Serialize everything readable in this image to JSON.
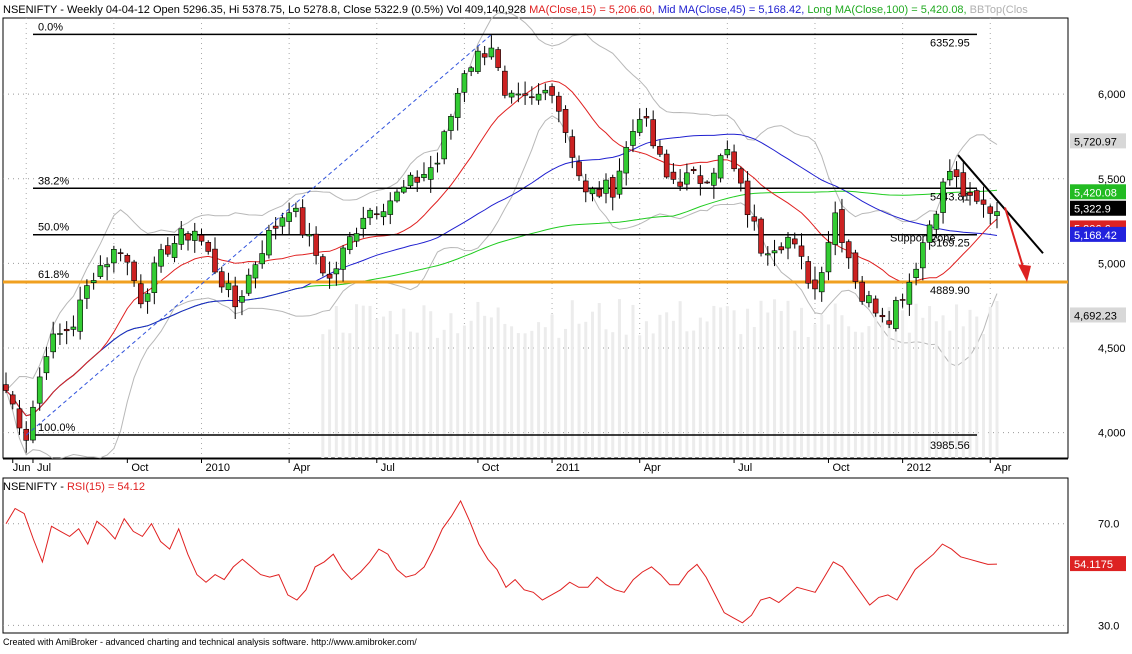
{
  "main_header": {
    "prefix": "NSENIFTY - Weekly 04-04-12 Open 5296.35, Hi 5378.75, Lo 5278.8, Close 5322.9 (0.5%) Vol 409,140,928 ",
    "ma15": "MA(Close,15) = 5,206.60, ",
    "ma45": "Mid MA(Close,45) = 5,168.42, ",
    "ma100": "Long MA(Close,100) = 5,420.08, ",
    "bb": "BBTop(Clos"
  },
  "rsi_header": {
    "prefix": "NSENIFTY - ",
    "rsi": "RSI(15) = 54.12"
  },
  "footer": "Created with AmiBroker - advanced charting and technical analysis software. http://www.amibroker.com/",
  "colors": {
    "up": "#33cc33",
    "down": "#cc2222",
    "ma15": "#e02020",
    "ma45": "#2020d0",
    "ma100": "#20cc20",
    "bb": "#b8b8b8",
    "fib_orange": "#f0a020",
    "rsi": "#e02020"
  },
  "chart_data": [
    {
      "type": "candlestick",
      "title": "NSENIFTY - Weekly",
      "ylim": [
        3850,
        6450
      ],
      "y_ticks": [
        "6,000",
        "5,500",
        "5,000",
        "4,500",
        "4,000"
      ],
      "x_labels": [
        "Jun",
        "Jul",
        "Oct",
        "2010",
        "Apr",
        "Jul",
        "Oct",
        "2011",
        "Apr",
        "Jul",
        "Oct",
        "2012",
        "Apr"
      ],
      "price_labels": [
        {
          "text": "5,720.97",
          "color": "#d8d8d8",
          "textColor": "#000000",
          "value": 5720.97
        },
        {
          "text": "5,420.08",
          "color": "#22bb22",
          "textColor": "#ffffff",
          "value": 5420.08
        },
        {
          "text": "5,322.9",
          "color": "#000000",
          "textColor": "#ffffff",
          "value": 5322.9
        },
        {
          "text": "5,206.6",
          "color": "#dd2222",
          "textColor": "#ffffff",
          "value": 5206.6
        },
        {
          "text": "5,168.42",
          "color": "#2222dd",
          "textColor": "#ffffff",
          "value": 5168.42
        },
        {
          "text": "4,692.23",
          "color": "#d8d8d8",
          "textColor": "#000000",
          "value": 4692.23
        }
      ],
      "fib_levels": [
        {
          "pct": "0.0%",
          "value": 6352.95,
          "right_label": "6352.95"
        },
        {
          "pct": "38.2%",
          "value": 5443.81,
          "right_label": "5443.81"
        },
        {
          "pct": "50.0%",
          "value": 5169.25,
          "right_label": "5169.25"
        },
        {
          "pct": "61.8%",
          "value": 4889.9,
          "right_label": "4889.90"
        },
        {
          "pct": "100.0%",
          "value": 3985.56,
          "right_label": "3985.56"
        }
      ],
      "annotation": "Support zone",
      "series": [
        {
          "name": "NSENIFTY",
          "kind": "ohlc",
          "dates": [
            "2009-06-22",
            "2009-07-13",
            "2009-10-19",
            "2010-01-04",
            "2010-04-05",
            "2010-07-05",
            "2010-10-18",
            "2011-01-03",
            "2011-04-04",
            "2011-07-11",
            "2011-10-17",
            "2012-01-02",
            "2012-04-02"
          ],
          "closes": [
            4250,
            4000,
            5000,
            5200,
            5300,
            5500,
            6300,
            5900,
            5750,
            5500,
            5100,
            4700,
            5322.9
          ]
        },
        {
          "name": "MA(Close,15)",
          "ref": "ma15"
        },
        {
          "name": "Mid MA(Close,45)",
          "ref": "ma45"
        },
        {
          "name": "Long MA(Close,100)",
          "ref": "ma100"
        }
      ]
    },
    {
      "type": "line",
      "title": "RSI(15)",
      "ylim": [
        27,
        88
      ],
      "y_ticks": [
        "70.0",
        "30.0"
      ],
      "last_value_label": "54.1175",
      "series": [
        {
          "name": "RSI(15)",
          "values": [
            70,
            76,
            74,
            64,
            55,
            69,
            67,
            65,
            68,
            62,
            71,
            68,
            64,
            72,
            67,
            65,
            70,
            63,
            60,
            68,
            58,
            50,
            47,
            50,
            48,
            53,
            56,
            53,
            50,
            49,
            50,
            42,
            40,
            44,
            53,
            55,
            58,
            52,
            48,
            51,
            55,
            60,
            58,
            52,
            49,
            50,
            53,
            60,
            68,
            73,
            79,
            71,
            62,
            56,
            52,
            45,
            48,
            44,
            43,
            40,
            42,
            44,
            47,
            45,
            45,
            49,
            46,
            44,
            43,
            48,
            51,
            53,
            50,
            46,
            46,
            51,
            54,
            49,
            42,
            35,
            33,
            31,
            34,
            40,
            41,
            39,
            42,
            45,
            44,
            43,
            49,
            55,
            53,
            48,
            43,
            38,
            41,
            42,
            40,
            46,
            52,
            55,
            58,
            62,
            60,
            57,
            56,
            55,
            54,
            54.12
          ]
        }
      ]
    }
  ]
}
